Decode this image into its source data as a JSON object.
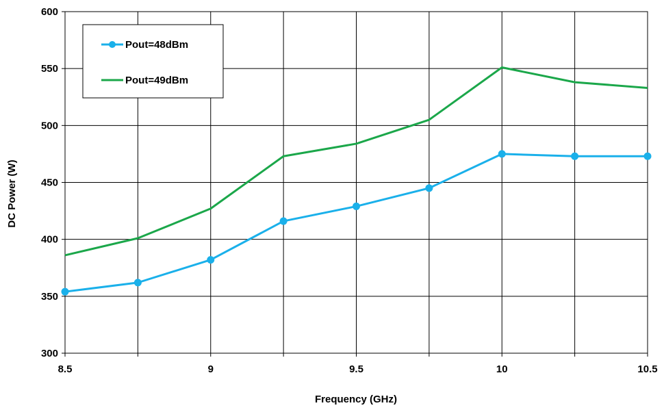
{
  "chart_data": {
    "type": "line",
    "xlabel": "Frequency (GHz)",
    "ylabel": "DC Power  (W)",
    "xlim": [
      8.5,
      10.5
    ],
    "ylim": [
      300,
      600
    ],
    "xticks": [
      8.5,
      8.75,
      9,
      9.25,
      9.5,
      9.75,
      10,
      10.25,
      10.5
    ],
    "xtick_labels": [
      "8.5",
      "",
      "9",
      "",
      "9.5",
      "",
      "10",
      "",
      "10.5"
    ],
    "yticks": [
      300,
      350,
      400,
      450,
      500,
      550,
      600
    ],
    "ytick_labels": [
      "300",
      "350",
      "400",
      "450",
      "500",
      "550",
      "600"
    ],
    "grid": true,
    "legend_position": "top-left",
    "x": [
      8.5,
      8.75,
      9,
      9.25,
      9.5,
      9.75,
      10,
      10.25,
      10.5
    ],
    "series": [
      {
        "name": "Pout=48dBm",
        "color": "#1ab0ea",
        "markers": true,
        "values": [
          354,
          362,
          382,
          416,
          429,
          445,
          475,
          473,
          473
        ]
      },
      {
        "name": "Pout=49dBm",
        "color": "#1ba74a",
        "markers": false,
        "values": [
          386,
          401,
          427,
          473,
          484,
          505,
          551,
          538,
          533
        ]
      }
    ]
  }
}
